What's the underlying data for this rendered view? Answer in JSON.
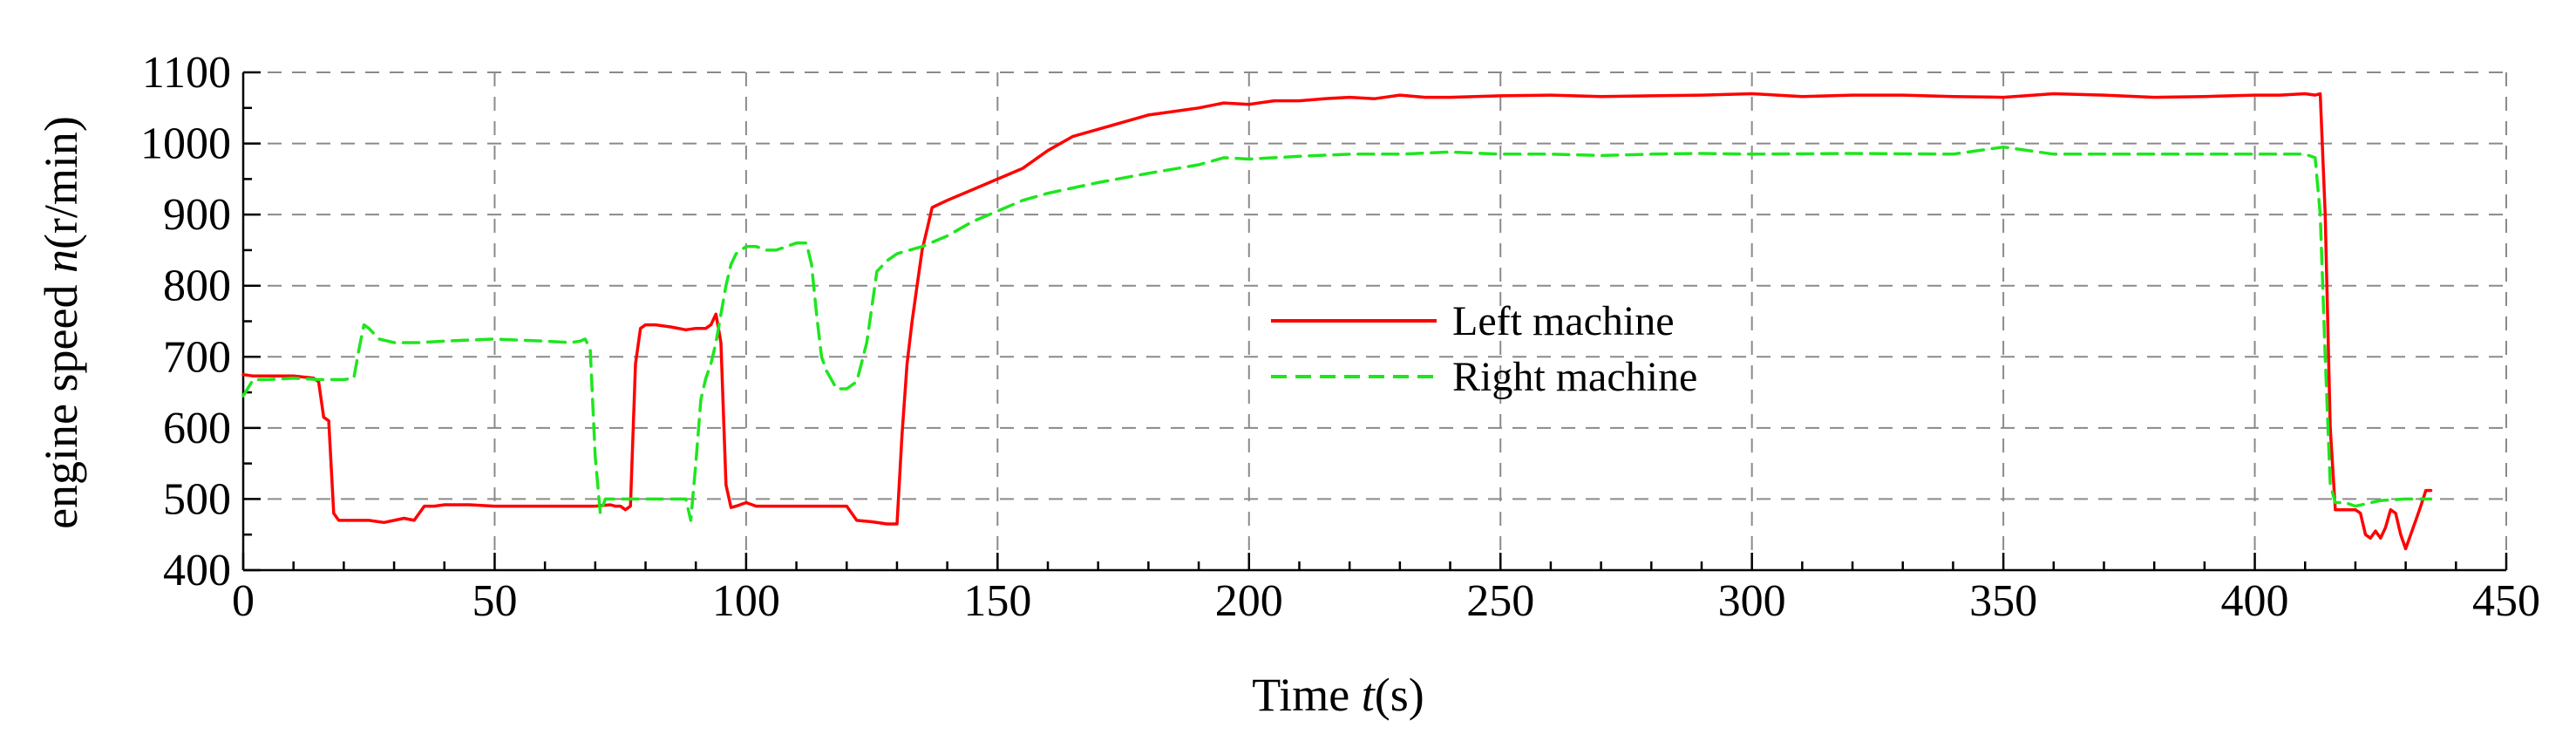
{
  "chart_data": {
    "type": "line",
    "xlabel": {
      "prefix": "Time ",
      "var": "t",
      "unit": "(s)"
    },
    "ylabel": {
      "prefix": "engine speed ",
      "var": "n",
      "unit": "(r/min)"
    },
    "xlim": [
      0,
      450
    ],
    "ylim": [
      400,
      1100
    ],
    "xticks": [
      0,
      50,
      100,
      150,
      200,
      250,
      300,
      350,
      400,
      450
    ],
    "yticks": [
      400,
      500,
      600,
      700,
      800,
      900,
      1000,
      1100
    ],
    "grid": true,
    "legend_position": "center",
    "series": [
      {
        "name": "Left machine",
        "color": "#ff0000",
        "dash": "solid",
        "x": [
          0,
          2,
          5,
          10,
          14,
          15,
          16,
          17,
          18,
          19,
          20,
          25,
          28,
          30,
          32,
          34,
          35,
          36,
          38,
          40,
          45,
          50,
          55,
          60,
          65,
          70,
          73,
          74,
          75,
          76,
          77,
          78,
          79,
          80,
          82,
          85,
          88,
          90,
          92,
          93,
          94,
          95,
          96,
          97,
          98,
          100,
          102,
          105,
          110,
          115,
          120,
          122,
          125,
          128,
          130,
          131,
          132,
          133,
          134,
          135,
          136,
          137,
          140,
          145,
          150,
          155,
          160,
          165,
          170,
          175,
          180,
          185,
          190,
          195,
          200,
          205,
          210,
          215,
          220,
          225,
          230,
          235,
          240,
          250,
          260,
          270,
          280,
          290,
          300,
          310,
          320,
          330,
          340,
          350,
          360,
          370,
          380,
          390,
          400,
          405,
          410,
          412,
          413,
          414,
          415,
          416,
          418,
          420,
          421,
          422,
          423,
          424,
          425,
          426,
          427,
          428,
          429,
          430,
          431,
          432,
          433,
          434,
          435
        ],
        "y": [
          675,
          673,
          673,
          673,
          670,
          665,
          615,
          610,
          480,
          470,
          470,
          470,
          467,
          470,
          473,
          470,
          480,
          490,
          490,
          492,
          492,
          490,
          490,
          490,
          490,
          490,
          492,
          490,
          490,
          485,
          490,
          690,
          740,
          745,
          745,
          742,
          738,
          740,
          740,
          745,
          760,
          720,
          520,
          488,
          490,
          495,
          490,
          490,
          490,
          490,
          490,
          470,
          468,
          465,
          465,
          590,
          690,
          750,
          800,
          850,
          880,
          910,
          920,
          935,
          950,
          965,
          990,
          1010,
          1020,
          1030,
          1040,
          1045,
          1050,
          1057,
          1055,
          1060,
          1060,
          1063,
          1065,
          1063,
          1068,
          1065,
          1065,
          1067,
          1068,
          1066,
          1067,
          1068,
          1070,
          1066,
          1068,
          1068,
          1066,
          1065,
          1070,
          1068,
          1065,
          1066,
          1068,
          1068,
          1070,
          1068,
          1070,
          900,
          600,
          485,
          485,
          485,
          480,
          450,
          445,
          455,
          445,
          460,
          485,
          480,
          450,
          430,
          450,
          470,
          490,
          512,
          512
        ]
      },
      {
        "name": "Right machine",
        "color": "#1ee61e",
        "dash": "dashed",
        "x": [
          0,
          2,
          5,
          10,
          15,
          20,
          22,
          23,
          24,
          25,
          27,
          30,
          35,
          40,
          50,
          60,
          65,
          67,
          68,
          69,
          70,
          71,
          72,
          75,
          80,
          85,
          88,
          89,
          90,
          91,
          92,
          93,
          94,
          95,
          96,
          97,
          98,
          99,
          100,
          102,
          104,
          106,
          108,
          110,
          112,
          113,
          114,
          115,
          116,
          118,
          120,
          122,
          124,
          126,
          128,
          130,
          135,
          140,
          145,
          150,
          155,
          160,
          170,
          180,
          190,
          195,
          200,
          210,
          220,
          230,
          240,
          250,
          260,
          270,
          280,
          290,
          300,
          320,
          340,
          350,
          360,
          380,
          400,
          405,
          410,
          412,
          413,
          414,
          415,
          416,
          418,
          420,
          425,
          430,
          435
        ],
        "y": [
          645,
          668,
          668,
          670,
          668,
          668,
          670,
          710,
          745,
          740,
          725,
          720,
          720,
          722,
          725,
          722,
          720,
          722,
          725,
          710,
          560,
          480,
          500,
          500,
          500,
          500,
          500,
          470,
          550,
          640,
          670,
          690,
          720,
          760,
          800,
          830,
          845,
          850,
          855,
          855,
          850,
          850,
          855,
          860,
          860,
          830,
          760,
          700,
          680,
          655,
          655,
          665,
          720,
          820,
          835,
          845,
          855,
          870,
          890,
          905,
          920,
          930,
          945,
          958,
          970,
          980,
          978,
          982,
          985,
          985,
          988,
          985,
          985,
          983,
          985,
          986,
          985,
          986,
          985,
          995,
          985,
          985,
          985,
          985,
          985,
          980,
          900,
          700,
          520,
          495,
          495,
          490,
          498,
          500,
          500
        ]
      }
    ]
  }
}
